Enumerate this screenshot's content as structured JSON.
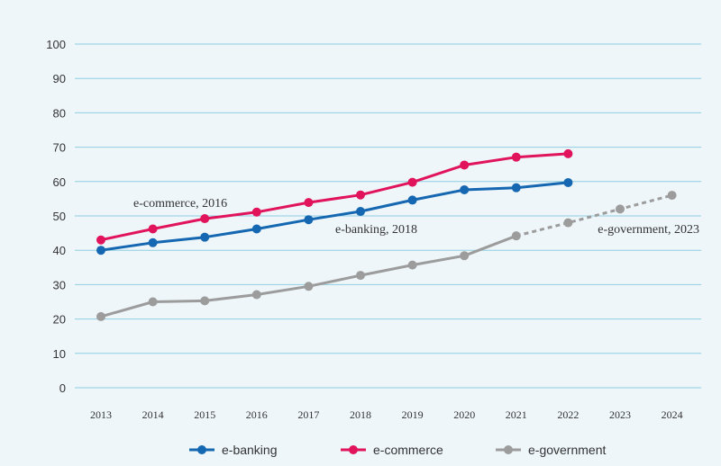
{
  "chart_data": {
    "type": "line",
    "title": "",
    "xlabel": "",
    "ylabel": "",
    "ylim": [
      0,
      100
    ],
    "yticks": [
      0,
      10,
      20,
      30,
      40,
      50,
      60,
      70,
      80,
      90,
      100
    ],
    "grid": true,
    "legend_position": "bottom",
    "categories": [
      "2013",
      "2014",
      "2015",
      "2016",
      "2017",
      "2018",
      "2019",
      "2020",
      "2021",
      "2022",
      "2023",
      "2024"
    ],
    "series": [
      {
        "name": "e-banking",
        "color": "#1467b0",
        "values": [
          40,
          42.2,
          43.8,
          46.2,
          48.9,
          51.3,
          54.6,
          57.6,
          58.2,
          59.7,
          null,
          null
        ],
        "label": "e-banking, 2018",
        "label_at": "2018"
      },
      {
        "name": "e-commerce",
        "color": "#e0135b",
        "values": [
          43,
          46.2,
          49.2,
          51.1,
          53.9,
          56.1,
          59.8,
          64.8,
          67.1,
          68.1,
          null,
          null
        ],
        "label": "e-commerce, 2016",
        "label_at": "2016"
      },
      {
        "name": "e-government",
        "color": "#9c9c9c",
        "values": [
          20.7,
          25,
          25.3,
          27.1,
          29.5,
          32.7,
          35.7,
          38.4,
          44.2,
          48,
          52,
          56
        ],
        "projected_from": "2021",
        "label": "e-government, 2023",
        "label_at": "2023"
      }
    ]
  }
}
